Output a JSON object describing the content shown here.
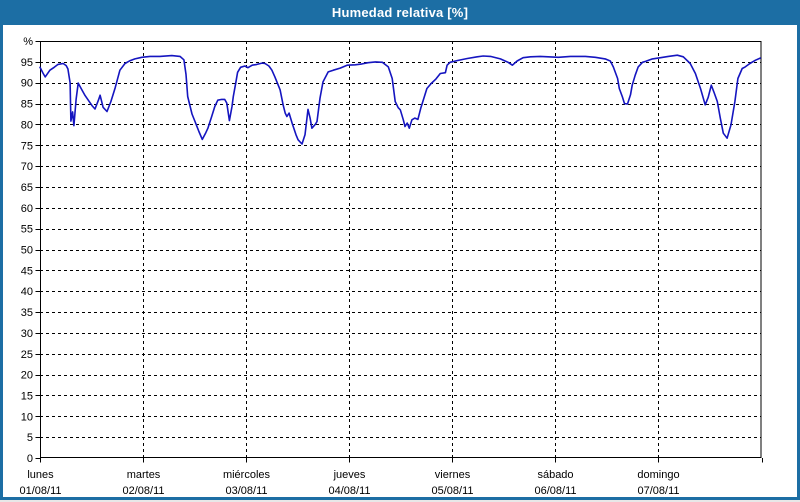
{
  "window": {
    "title": "Humedad relativa [%]"
  },
  "colors": {
    "titlebar": "#1c6ea4",
    "frame": "#1c6ea4",
    "plot_border": "#000000",
    "grid": "#000000",
    "background": "#ffffff",
    "plot_line": "#1515c0",
    "label_text": "#000000"
  },
  "chart_data": {
    "type": "line",
    "title": "Humedad relativa [%]",
    "unit": "%",
    "grid": "dashed",
    "legend": "none",
    "y_axis": {
      "label": "%",
      "min": 0,
      "max": 100,
      "tick_step": 5,
      "tick_labels": [
        "0",
        "5",
        "10",
        "15",
        "20",
        "25",
        "30",
        "35",
        "40",
        "45",
        "50",
        "55",
        "60",
        "65",
        "70",
        "75",
        "80",
        "85",
        "90",
        "95"
      ]
    },
    "x_axis": {
      "range_hours": [
        0,
        168
      ],
      "hours_per_day": 24,
      "days": [
        {
          "weekday": "lunes",
          "date": "01/08/11"
        },
        {
          "weekday": "martes",
          "date": "02/08/11"
        },
        {
          "weekday": "miércoles",
          "date": "03/08/11"
        },
        {
          "weekday": "jueves",
          "date": "04/08/11"
        },
        {
          "weekday": "viernes",
          "date": "05/08/11"
        },
        {
          "weekday": "sábado",
          "date": "06/08/11"
        },
        {
          "weekday": "domingo",
          "date": "07/08/11"
        }
      ]
    },
    "series": [
      {
        "name": "Humedad relativa",
        "color": "#1515c0",
        "points": [
          [
            0.0,
            93.7
          ],
          [
            0.7,
            92.3
          ],
          [
            1.2,
            91.4
          ],
          [
            2.3,
            93.0
          ],
          [
            3.3,
            93.7
          ],
          [
            4.2,
            94.4
          ],
          [
            5.4,
            94.6
          ],
          [
            6.1,
            94.1
          ],
          [
            6.5,
            93.3
          ],
          [
            7.0,
            90.0
          ],
          [
            7.2,
            80.8
          ],
          [
            7.6,
            83.0
          ],
          [
            7.9,
            79.7
          ],
          [
            8.4,
            86.0
          ],
          [
            8.9,
            89.9
          ],
          [
            9.8,
            88.2
          ],
          [
            10.5,
            86.9
          ],
          [
            12.1,
            84.5
          ],
          [
            12.8,
            83.7
          ],
          [
            13.6,
            85.8
          ],
          [
            14.0,
            87.0
          ],
          [
            14.7,
            84.1
          ],
          [
            15.6,
            83.1
          ],
          [
            16.5,
            85.5
          ],
          [
            17.5,
            88.8
          ],
          [
            18.6,
            93.0
          ],
          [
            19.8,
            94.6
          ],
          [
            21.0,
            95.3
          ],
          [
            22.1,
            95.7
          ],
          [
            23.7,
            96.1
          ],
          [
            25.6,
            96.3
          ],
          [
            27.9,
            96.3
          ],
          [
            30.7,
            96.5
          ],
          [
            32.6,
            96.3
          ],
          [
            33.5,
            95.5
          ],
          [
            34.0,
            92.0
          ],
          [
            34.4,
            86.7
          ],
          [
            35.4,
            82.5
          ],
          [
            36.1,
            80.7
          ],
          [
            37.0,
            78.3
          ],
          [
            37.8,
            76.4
          ],
          [
            38.6,
            78.0
          ],
          [
            39.1,
            79.1
          ],
          [
            40.0,
            82.0
          ],
          [
            40.7,
            84.3
          ],
          [
            41.4,
            85.8
          ],
          [
            42.3,
            86.0
          ],
          [
            43.0,
            86.0
          ],
          [
            43.5,
            85.1
          ],
          [
            44.1,
            80.9
          ],
          [
            44.7,
            84.3
          ],
          [
            45.0,
            86.7
          ],
          [
            45.6,
            90.0
          ],
          [
            46.0,
            92.5
          ],
          [
            46.7,
            93.7
          ],
          [
            47.7,
            94.0
          ],
          [
            48.4,
            93.6
          ],
          [
            49.4,
            94.2
          ],
          [
            50.5,
            94.4
          ],
          [
            51.7,
            94.7
          ],
          [
            52.4,
            94.6
          ],
          [
            53.3,
            94.0
          ],
          [
            54.0,
            93.0
          ],
          [
            54.7,
            91.4
          ],
          [
            55.9,
            88.3
          ],
          [
            56.6,
            84.7
          ],
          [
            57.1,
            82.7
          ],
          [
            57.5,
            81.9
          ],
          [
            58.0,
            82.7
          ],
          [
            58.7,
            80.3
          ],
          [
            59.6,
            77.5
          ],
          [
            60.1,
            76.3
          ],
          [
            61.0,
            75.3
          ],
          [
            61.7,
            77.5
          ],
          [
            62.4,
            83.6
          ],
          [
            62.9,
            81.5
          ],
          [
            63.3,
            79.1
          ],
          [
            64.1,
            80.0
          ],
          [
            64.5,
            80.7
          ],
          [
            65.2,
            86.3
          ],
          [
            65.9,
            90.2
          ],
          [
            67.1,
            92.6
          ],
          [
            68.3,
            93.0
          ],
          [
            69.9,
            93.5
          ],
          [
            71.5,
            94.2
          ],
          [
            73.4,
            94.3
          ],
          [
            75.0,
            94.5
          ],
          [
            76.4,
            94.8
          ],
          [
            78.1,
            95.0
          ],
          [
            79.7,
            94.9
          ],
          [
            81.1,
            93.8
          ],
          [
            82.0,
            91.0
          ],
          [
            82.7,
            85.5
          ],
          [
            83.4,
            84.0
          ],
          [
            83.9,
            83.5
          ],
          [
            84.6,
            81.1
          ],
          [
            85.0,
            79.5
          ],
          [
            85.5,
            80.3
          ],
          [
            86.0,
            79.1
          ],
          [
            86.6,
            81.1
          ],
          [
            87.3,
            81.5
          ],
          [
            88.0,
            81.2
          ],
          [
            88.7,
            84.0
          ],
          [
            89.4,
            86.3
          ],
          [
            90.1,
            88.6
          ],
          [
            91.1,
            89.8
          ],
          [
            92.2,
            90.9
          ],
          [
            93.2,
            92.2
          ],
          [
            94.4,
            92.4
          ],
          [
            94.8,
            94.2
          ],
          [
            95.5,
            94.9
          ],
          [
            97.1,
            95.3
          ],
          [
            99.5,
            95.8
          ],
          [
            101.8,
            96.2
          ],
          [
            103.2,
            96.4
          ],
          [
            104.9,
            96.3
          ],
          [
            107.2,
            95.7
          ],
          [
            108.3,
            95.2
          ],
          [
            109.0,
            94.9
          ],
          [
            110.0,
            94.2
          ],
          [
            111.1,
            95.2
          ],
          [
            112.5,
            96.0
          ],
          [
            114.2,
            96.2
          ],
          [
            116.5,
            96.3
          ],
          [
            118.3,
            96.2
          ],
          [
            120.7,
            96.1
          ],
          [
            123.5,
            96.3
          ],
          [
            127.0,
            96.3
          ],
          [
            129.3,
            96.1
          ],
          [
            131.6,
            95.7
          ],
          [
            132.8,
            95.2
          ],
          [
            133.5,
            93.8
          ],
          [
            134.5,
            91.0
          ],
          [
            134.9,
            88.6
          ],
          [
            135.6,
            86.6
          ],
          [
            136.1,
            85.0
          ],
          [
            136.8,
            84.9
          ],
          [
            137.5,
            87.1
          ],
          [
            137.9,
            89.4
          ],
          [
            138.6,
            91.8
          ],
          [
            139.3,
            93.8
          ],
          [
            140.3,
            94.9
          ],
          [
            141.0,
            95.1
          ],
          [
            142.6,
            95.7
          ],
          [
            144.5,
            96.0
          ],
          [
            146.3,
            96.3
          ],
          [
            148.4,
            96.6
          ],
          [
            149.8,
            96.2
          ],
          [
            151.4,
            94.6
          ],
          [
            152.6,
            92.2
          ],
          [
            153.8,
            88.6
          ],
          [
            154.9,
            84.7
          ],
          [
            155.6,
            86.5
          ],
          [
            156.3,
            89.4
          ],
          [
            157.0,
            87.5
          ],
          [
            157.7,
            85.5
          ],
          [
            158.4,
            81.5
          ],
          [
            159.1,
            77.9
          ],
          [
            160.0,
            76.7
          ],
          [
            160.9,
            79.9
          ],
          [
            161.8,
            85.5
          ],
          [
            162.5,
            91.0
          ],
          [
            163.5,
            93.4
          ],
          [
            164.2,
            93.8
          ],
          [
            165.3,
            94.6
          ],
          [
            166.6,
            95.4
          ],
          [
            167.7,
            95.9
          ]
        ]
      }
    ]
  }
}
